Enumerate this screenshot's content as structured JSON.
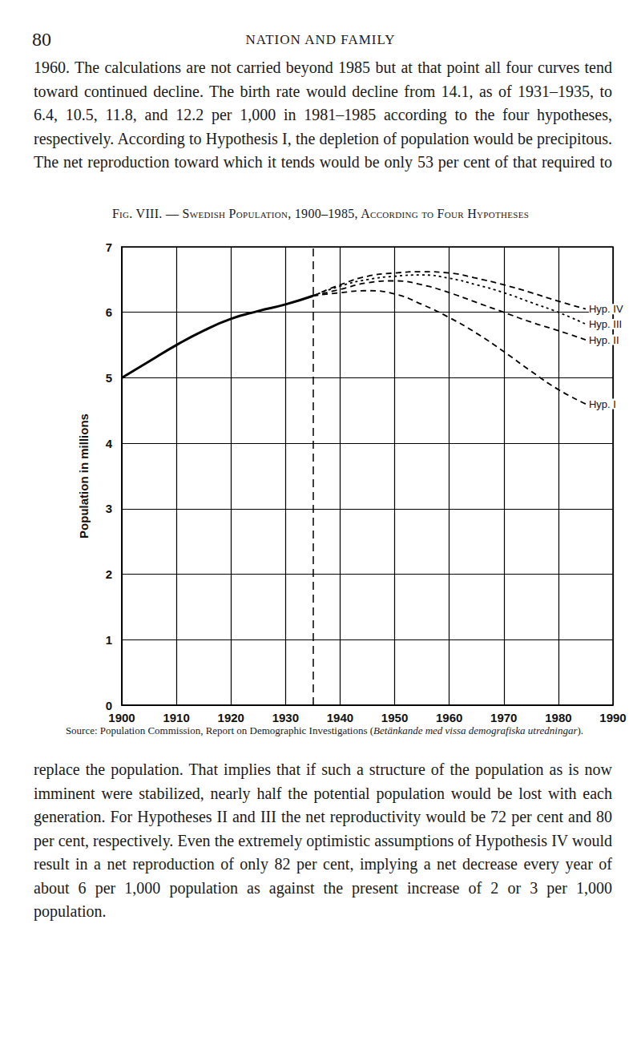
{
  "header": {
    "page_number": "80",
    "running_title": "NATION AND FAMILY"
  },
  "paragraphs": [
    "1960. The calculations are not carried beyond 1985 but at that point all four curves tend toward continued decline. The birth rate would decline from 14.1, as of 1931–1935, to 6.4, 10.5, 11.8, and 12.2 per 1,000 in 1981–1985 according to the four hypotheses, respectively. According to Hypothesis I, the depletion of population would be precipitous. The net reproduction toward which it tends would be only 53 per cent of that required to",
    "replace the population. That implies that if such a structure of the population as is now imminent were stabilized, nearly half the potential population would be lost with each generation. For Hypotheses II and III the net reproductivity would be 72 per cent and 80 per cent, respectively. Even the extremely optimistic assumptions of Hypothesis IV would result in a net reproduction of only 82 per cent, implying a net decrease every year of about 6 per 1,000 population as against the present increase of 2 or 3 per 1,000 population."
  ],
  "figure_caption": "Fig. VIII. — Swedish Population, 1900–1985, According to Four Hypotheses",
  "source": {
    "text": "Source: Population Commission, Report on Demographic Investigations (",
    "italic": "Betänkande med vissa demografiska utredningar",
    "end": ")."
  },
  "chart_data": {
    "type": "line",
    "y_label": "Population in millions",
    "xlim": [
      1900,
      1990
    ],
    "xticks": [
      1900,
      1910,
      1920,
      1930,
      1940,
      1950,
      1960,
      1970,
      1980,
      1990
    ],
    "ylim": [
      0,
      7
    ],
    "yticks": [
      0,
      1,
      2,
      3,
      4,
      5,
      6,
      7
    ],
    "grid": true,
    "projection_start": 1935,
    "series": [
      {
        "color": "#000000",
        "line_style": "solid",
        "x": [
          1900,
          1905,
          1910,
          1915,
          1920,
          1925,
          1930,
          1935
        ],
        "values": [
          5.0,
          5.25,
          5.5,
          5.72,
          5.9,
          6.02,
          6.12,
          6.25
        ]
      },
      {
        "name": "Hyp. IV",
        "color": "#000000",
        "line_style": "dashed",
        "x": [
          1935,
          1940,
          1945,
          1950,
          1955,
          1960,
          1965,
          1970,
          1975,
          1980,
          1985
        ],
        "values": [
          6.25,
          6.42,
          6.55,
          6.6,
          6.62,
          6.6,
          6.52,
          6.42,
          6.3,
          6.17,
          6.05
        ]
      },
      {
        "name": "Hyp. III",
        "color": "#000000",
        "line_style": "dotted",
        "x": [
          1935,
          1940,
          1945,
          1950,
          1955,
          1960,
          1965,
          1970,
          1975,
          1980,
          1985
        ],
        "values": [
          6.25,
          6.4,
          6.5,
          6.55,
          6.57,
          6.52,
          6.42,
          6.3,
          6.15,
          6.0,
          5.82
        ]
      },
      {
        "name": "Hyp. II",
        "color": "#000000",
        "line_style": "dashed",
        "x": [
          1935,
          1940,
          1945,
          1950,
          1955,
          1960,
          1965,
          1970,
          1975,
          1980,
          1985
        ],
        "values": [
          6.25,
          6.35,
          6.45,
          6.48,
          6.42,
          6.3,
          6.15,
          6.0,
          5.85,
          5.72,
          5.58
        ]
      },
      {
        "name": "Hyp. I",
        "color": "#000000",
        "line_style": "dashed",
        "x": [
          1935,
          1940,
          1945,
          1950,
          1955,
          1960,
          1965,
          1970,
          1975,
          1980,
          1985
        ],
        "values": [
          6.25,
          6.3,
          6.33,
          6.28,
          6.12,
          5.92,
          5.68,
          5.4,
          5.1,
          4.82,
          4.6
        ]
      }
    ]
  }
}
